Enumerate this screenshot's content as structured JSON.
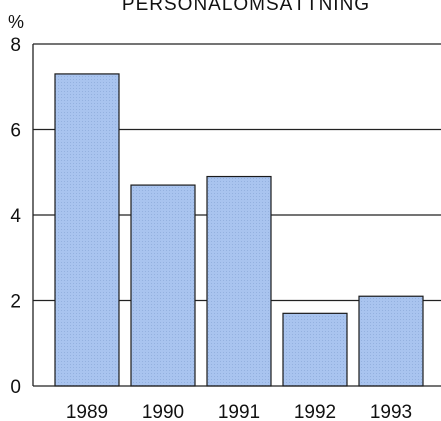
{
  "chart_data": {
    "type": "bar",
    "title": "PERSONALOMSÄTTNING",
    "ylabel": "%",
    "xlabel": "",
    "categories": [
      "1989",
      "1990",
      "1991",
      "1992",
      "1993"
    ],
    "values": [
      7.3,
      4.7,
      4.9,
      1.7,
      2.1
    ],
    "ylim": [
      0,
      8
    ],
    "yticks": [
      0,
      2,
      4,
      6,
      8
    ],
    "grid": true,
    "bar_color": "#a9c4ef"
  }
}
